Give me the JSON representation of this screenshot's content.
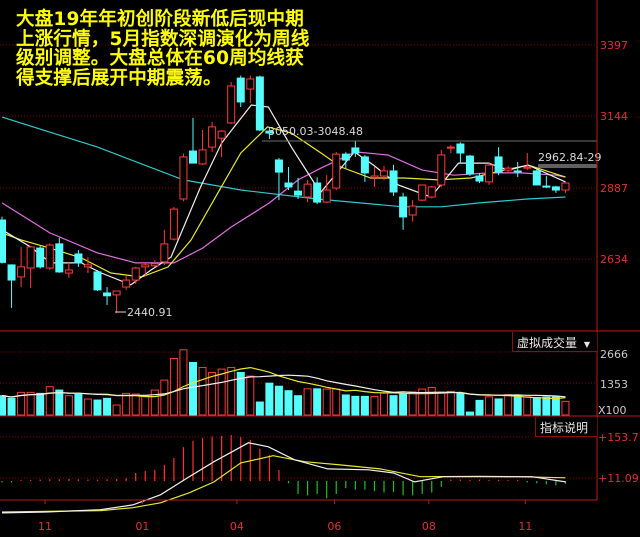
{
  "annotation_text": [
    "大盘19年年初创阶段新低后现中期",
    "上涨行情，5月指数深调演化为周线",
    "级别调整。大盘总体在60周均线获",
    "得支撑后展开中期震荡。"
  ],
  "colors": {
    "up": "#ff3a3a",
    "down": "#54fcfc",
    "grid": "#7a0000",
    "axis": "#c01818",
    "text_yellow": "#ffff00",
    "ma_white": "#f0f0f0",
    "ma_yellow": "#e8e830",
    "ma_magenta": "#e070e0",
    "ma_cyan": "#30c8c8"
  },
  "volume_panel": {
    "indicator_button": "虚拟成交量",
    "dropdown_icon": "triangle-down",
    "labels": [
      "2666",
      "1353",
      "X100"
    ]
  },
  "macd_panel": {
    "help_button": "指标说明",
    "labels": [
      "+153.7",
      "+11.09"
    ]
  },
  "chart_data": {
    "type": "candlestick",
    "period": "weekly",
    "price_axis": {
      "ticks": [
        "3397",
        "3144",
        "2887",
        "2634"
      ],
      "range": [
        2420,
        3557
      ]
    },
    "x_tick_labels": [
      "11",
      "01",
      "04",
      "06",
      "08",
      "11"
    ],
    "price_markers": {
      "low_label": "2440.91",
      "high_label": "3050.03-3048.48",
      "recent_label": "2962.84-29"
    },
    "ohlc": [
      [
        2773,
        2785,
        2618,
        2622
      ],
      [
        2613,
        2615,
        2460,
        2559
      ],
      [
        2570,
        2677,
        2534,
        2606
      ],
      [
        2602,
        2680,
        2531,
        2677
      ],
      [
        2673,
        2680,
        2600,
        2606
      ],
      [
        2602,
        2690,
        2595,
        2684
      ],
      [
        2688,
        2710,
        2585,
        2588
      ],
      [
        2584,
        2624,
        2567,
        2595
      ],
      [
        2652,
        2666,
        2606,
        2620
      ],
      [
        2606,
        2641,
        2584,
        2613
      ],
      [
        2588,
        2595,
        2520,
        2524
      ],
      [
        2513,
        2534,
        2470,
        2503
      ],
      [
        2506,
        2520,
        2441,
        2520
      ],
      [
        2534,
        2574,
        2524,
        2559
      ],
      [
        2559,
        2606,
        2545,
        2602
      ],
      [
        2606,
        2620,
        2574,
        2613
      ],
      [
        2610,
        2630,
        2605,
        2617
      ],
      [
        2624,
        2738,
        2613,
        2688
      ],
      [
        2705,
        2820,
        2700,
        2812
      ],
      [
        2848,
        3010,
        2840,
        2998
      ],
      [
        3019,
        3137,
        2976,
        2976
      ],
      [
        2973,
        3094,
        2969,
        3023
      ],
      [
        3033,
        3123,
        3016,
        3105
      ],
      [
        3065,
        3094,
        2998,
        3090
      ],
      [
        3119,
        3265,
        3115,
        3251
      ],
      [
        3279,
        3288,
        3176,
        3194
      ],
      [
        3240,
        3288,
        3190,
        3276
      ],
      [
        3283,
        3288,
        3090,
        3094
      ],
      [
        3090,
        3101,
        3062,
        3083
      ],
      [
        2987,
        2994,
        2844,
        2944
      ],
      [
        2905,
        2962,
        2880,
        2891
      ],
      [
        2876,
        2923,
        2848,
        2862
      ],
      [
        2855,
        2916,
        2837,
        2901
      ],
      [
        2905,
        2925,
        2830,
        2837
      ],
      [
        2837,
        2933,
        2834,
        2880
      ],
      [
        2887,
        3015,
        2880,
        3008
      ],
      [
        3008,
        3015,
        2958,
        2987
      ],
      [
        3030,
        3055,
        2998,
        3012
      ],
      [
        2998,
        3005,
        2909,
        2941
      ],
      [
        2925,
        2962,
        2891,
        2930
      ],
      [
        2930,
        2965,
        2915,
        2948
      ],
      [
        2948,
        2970,
        2859,
        2873
      ],
      [
        2855,
        2870,
        2738,
        2784
      ],
      [
        2791,
        2844,
        2767,
        2823
      ],
      [
        2844,
        2900,
        2840,
        2898
      ],
      [
        2855,
        2895,
        2850,
        2891
      ],
      [
        2898,
        3023,
        2891,
        3005
      ],
      [
        3030,
        3040,
        3012,
        3033
      ],
      [
        3044,
        3050,
        2976,
        3012
      ],
      [
        3001,
        3005,
        2930,
        2937
      ],
      [
        2930,
        2940,
        2905,
        2912
      ],
      [
        2909,
        2980,
        2898,
        2969
      ],
      [
        2998,
        3033,
        2933,
        2944
      ],
      [
        2951,
        2965,
        2940,
        2958
      ],
      [
        2948,
        2980,
        2926,
        2944
      ],
      [
        2958,
        3012,
        2951,
        2962
      ],
      [
        2948,
        2955,
        2898,
        2898
      ],
      [
        2894,
        2930,
        2887,
        2891
      ],
      [
        2891,
        2895,
        2870,
        2880
      ],
      [
        2880,
        2910,
        2870,
        2905
      ]
    ],
    "moving_averages": [
      {
        "color": "ma_white",
        "points": [
          [
            0,
            2738
          ],
          [
            3,
            2677
          ],
          [
            5.1,
            2620
          ],
          [
            8.3,
            2620
          ],
          [
            10.4,
            2584
          ],
          [
            13.5,
            2542
          ],
          [
            15.6,
            2595
          ],
          [
            17.7,
            2641
          ],
          [
            20.8,
            2891
          ],
          [
            23,
            3048
          ],
          [
            26.1,
            3183
          ],
          [
            27.9,
            3176
          ],
          [
            30.3,
            3033
          ],
          [
            32.7,
            2905
          ],
          [
            33.4,
            2873
          ],
          [
            36.9,
            3016
          ],
          [
            38.9,
            2969
          ],
          [
            41.5,
            2898
          ],
          [
            44.9,
            2855
          ],
          [
            47.8,
            2976
          ],
          [
            50.9,
            2976
          ],
          [
            53,
            2951
          ],
          [
            55.1,
            2969
          ],
          [
            59,
            2909
          ]
        ]
      },
      {
        "color": "ma_yellow",
        "points": [
          [
            0,
            2727
          ],
          [
            2,
            2702
          ],
          [
            5,
            2673
          ],
          [
            8.3,
            2638
          ],
          [
            11.4,
            2584
          ],
          [
            14.6,
            2570
          ],
          [
            17.4,
            2606
          ],
          [
            19.8,
            2702
          ],
          [
            22.6,
            2869
          ],
          [
            25,
            3012
          ],
          [
            27.8,
            3105
          ],
          [
            30.3,
            3083
          ],
          [
            33.4,
            3012
          ],
          [
            35.5,
            2962
          ],
          [
            38.6,
            2923
          ],
          [
            42.1,
            2923
          ],
          [
            45.7,
            2916
          ],
          [
            49.1,
            2923
          ],
          [
            52.6,
            2951
          ],
          [
            55.1,
            2969
          ],
          [
            59,
            2926
          ]
        ]
      },
      {
        "color": "ma_magenta",
        "points": [
          [
            0,
            2834
          ],
          [
            5,
            2727
          ],
          [
            10,
            2656
          ],
          [
            14,
            2620
          ],
          [
            18,
            2620
          ],
          [
            21,
            2673
          ],
          [
            24,
            2748
          ],
          [
            28,
            2834
          ],
          [
            31,
            2916
          ],
          [
            33.4,
            2958
          ],
          [
            37,
            3016
          ],
          [
            40.4,
            3005
          ],
          [
            44,
            2951
          ],
          [
            47.3,
            2933
          ],
          [
            51,
            2941
          ],
          [
            54.3,
            2941
          ],
          [
            58,
            2933
          ],
          [
            59,
            2926
          ]
        ]
      },
      {
        "color": "ma_cyan",
        "points": [
          [
            0,
            3140
          ],
          [
            10,
            3033
          ],
          [
            19,
            2916
          ],
          [
            25,
            2880
          ],
          [
            33,
            2848
          ],
          [
            42,
            2820
          ],
          [
            46,
            2820
          ],
          [
            50,
            2834
          ],
          [
            55,
            2848
          ],
          [
            59,
            2855
          ]
        ]
      }
    ],
    "volume_x100": [
      818,
      705,
      960,
      960,
      917,
      1200,
      1058,
      818,
      875,
      677,
      635,
      705,
      423,
      917,
      888,
      818,
      1058,
      1480,
      2397,
      2764,
      2228,
      2016,
      1805,
      1946,
      2016,
      1805,
      1650,
      550,
      1350,
      1220,
      1030,
      818,
      1110,
      1110,
      1100,
      1100,
      850,
      790,
      790,
      790,
      930,
      820,
      900,
      980,
      1100,
      1170,
      960,
      1000,
      930,
      125,
      620,
      770,
      680,
      860,
      850,
      770,
      740,
      760,
      760,
      580
    ],
    "macd": {
      "histogram": [
        [
          0,
          -5
        ],
        [
          1,
          -5
        ],
        [
          2,
          3
        ],
        [
          3,
          4
        ],
        [
          4,
          5
        ],
        [
          5,
          6
        ],
        [
          6,
          6
        ],
        [
          7,
          7
        ],
        [
          8,
          6
        ],
        [
          9,
          5
        ],
        [
          10,
          5
        ],
        [
          11,
          6
        ],
        [
          12,
          7
        ],
        [
          13,
          10
        ],
        [
          14,
          28
        ],
        [
          15,
          35
        ],
        [
          16,
          39
        ],
        [
          17,
          56
        ],
        [
          18,
          80
        ],
        [
          19,
          118
        ],
        [
          20,
          140
        ],
        [
          21,
          150
        ],
        [
          22,
          155
        ],
        [
          23,
          157
        ],
        [
          24,
          160
        ],
        [
          25,
          153
        ],
        [
          26,
          143
        ],
        [
          27,
          112
        ],
        [
          28,
          90
        ],
        [
          29,
          38
        ],
        [
          30,
          -8
        ],
        [
          31,
          -45
        ],
        [
          32,
          -50
        ],
        [
          33,
          -45
        ],
        [
          34,
          -60
        ],
        [
          35,
          -45
        ],
        [
          36,
          -25
        ],
        [
          37,
          -30
        ],
        [
          38,
          -30
        ],
        [
          39,
          -35
        ],
        [
          40,
          -40
        ],
        [
          41,
          -38
        ],
        [
          42,
          -50
        ],
        [
          43,
          -50
        ],
        [
          44,
          -45
        ],
        [
          45,
          -40
        ],
        [
          46,
          -20
        ],
        [
          47,
          5
        ],
        [
          48,
          5
        ],
        [
          49,
          4
        ],
        [
          50,
          5
        ],
        [
          51,
          4
        ],
        [
          52,
          4
        ],
        [
          53,
          3
        ],
        [
          54,
          4
        ],
        [
          55,
          -5
        ],
        [
          56,
          -8
        ],
        [
          57,
          -12
        ],
        [
          58,
          -15
        ],
        [
          59,
          -10
        ]
      ],
      "dif": [
        [
          0,
          -111
        ],
        [
          4.6,
          -108
        ],
        [
          10.3,
          -100
        ],
        [
          13.7,
          -83
        ],
        [
          16.6,
          -48
        ],
        [
          19.6,
          15
        ],
        [
          22.2,
          67
        ],
        [
          25.8,
          133
        ],
        [
          27.9,
          119
        ],
        [
          30.6,
          74
        ],
        [
          34.1,
          42
        ],
        [
          38.4,
          39
        ],
        [
          41,
          28
        ],
        [
          43.2,
          -3
        ],
        [
          46.2,
          15
        ],
        [
          51.3,
          15
        ],
        [
          55.5,
          15
        ],
        [
          59,
          -3
        ]
      ],
      "dea": [
        [
          0,
          -108
        ],
        [
          10.3,
          -103
        ],
        [
          13.7,
          -93
        ],
        [
          16.6,
          -76
        ],
        [
          19.6,
          -41
        ],
        [
          22.2,
          -3
        ],
        [
          25,
          63
        ],
        [
          28.4,
          88
        ],
        [
          31.7,
          67
        ],
        [
          35.4,
          56
        ],
        [
          39.6,
          42
        ],
        [
          43.8,
          15
        ],
        [
          50,
          16
        ],
        [
          54,
          15
        ],
        [
          59,
          11
        ]
      ]
    }
  }
}
